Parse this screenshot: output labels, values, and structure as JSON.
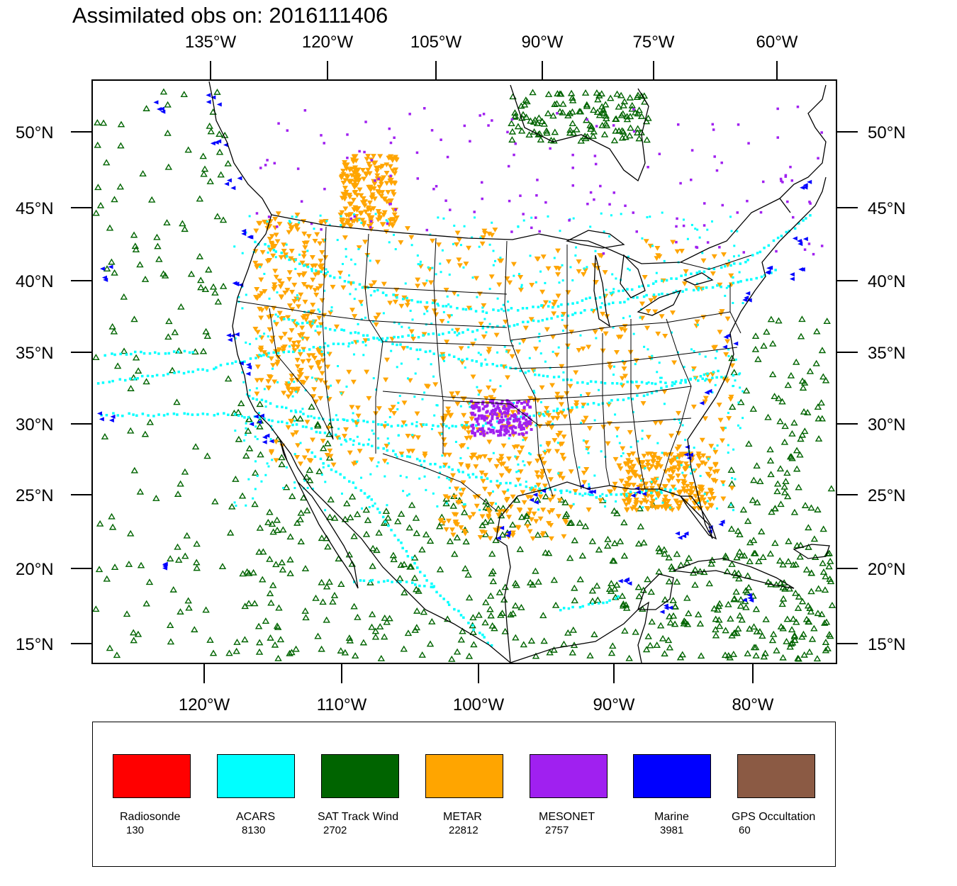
{
  "title": "Assimilated obs on: 2016111406",
  "top_lon_labels": [
    "135°W",
    "120°W",
    "105°W",
    "90°W",
    "75°W",
    "60°W"
  ],
  "bottom_lon_labels": [
    "120°W",
    "110°W",
    "100°W",
    "90°W",
    "80°W"
  ],
  "lat_labels": [
    "50°N",
    "45°N",
    "40°N",
    "35°N",
    "30°N",
    "25°N",
    "20°N",
    "15°N"
  ],
  "legend": [
    {
      "label": "Radiosonde",
      "count": "130",
      "color": "#ff0000"
    },
    {
      "label": "ACARS",
      "count": "8130",
      "color": "#00ffff"
    },
    {
      "label": "SAT Track Wind",
      "count": "2702",
      "color": "#006400"
    },
    {
      "label": "METAR",
      "count": "22812",
      "color": "#ffa500"
    },
    {
      "label": "MESONET",
      "count": "2757",
      "color": "#a020f0"
    },
    {
      "label": "Marine",
      "count": "3981",
      "color": "#0000ff"
    },
    {
      "label": "GPS Occultation",
      "count": "60",
      "color": "#8b5a44"
    }
  ],
  "colors": {
    "acars": "#00ffff",
    "sat_track_wind": "#006400",
    "metar": "#ffa500",
    "mesonet": "#a020f0",
    "marine": "#0000ff",
    "gps": "#8b5a44",
    "radiosonde": "#ff0000"
  }
}
